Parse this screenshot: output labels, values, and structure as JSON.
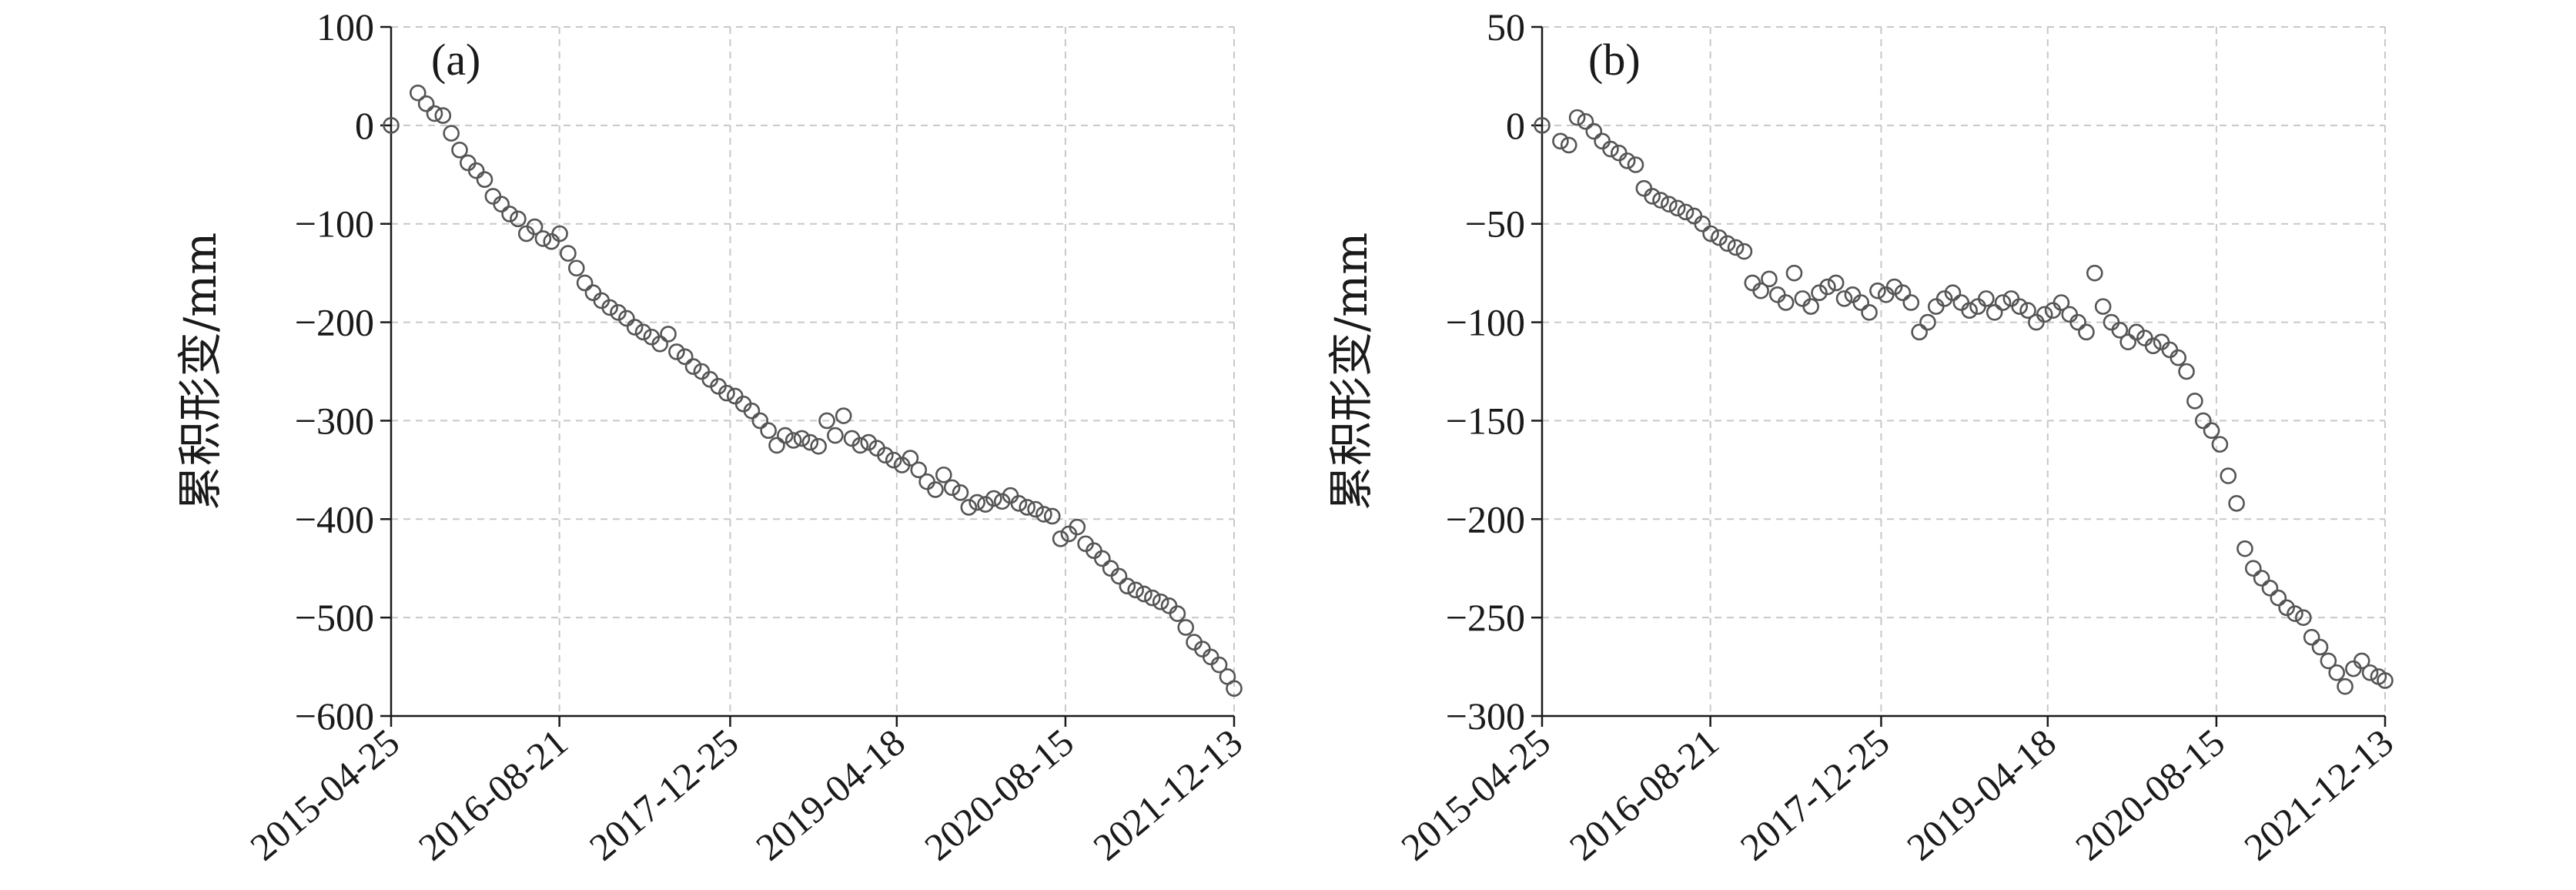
{
  "chart_data": [
    {
      "type": "scatter",
      "panel_label": "(a)",
      "ylabel": "累积形变/mm",
      "ylim": [
        -600,
        100
      ],
      "yticks": [
        100,
        0,
        -100,
        -200,
        -300,
        -400,
        -500,
        -600
      ],
      "ytick_labels": [
        "100",
        "0",
        "−100",
        "−200",
        "−300",
        "−400",
        "−500",
        "−600"
      ],
      "xlim": [
        "2015-04-25",
        "2021-12-13"
      ],
      "xticks": [
        "2015-04-25",
        "2016-08-21",
        "2017-12-25",
        "2019-04-18",
        "2020-08-15",
        "2021-12-13"
      ],
      "grid": true,
      "series": [
        {
          "marker": "open-circle",
          "color": "#555555",
          "points": [
            [
              "2015-04-25",
              0
            ],
            [
              "2015-07-11",
              33
            ],
            [
              "2015-08-04",
              22
            ],
            [
              "2015-08-28",
              12
            ],
            [
              "2015-09-21",
              10
            ],
            [
              "2015-10-15",
              -8
            ],
            [
              "2015-11-08",
              -25
            ],
            [
              "2015-12-02",
              -38
            ],
            [
              "2015-12-26",
              -46
            ],
            [
              "2016-01-19",
              -55
            ],
            [
              "2016-02-12",
              -72
            ],
            [
              "2016-03-07",
              -80
            ],
            [
              "2016-03-31",
              -90
            ],
            [
              "2016-04-24",
              -95
            ],
            [
              "2016-05-18",
              -110
            ],
            [
              "2016-06-11",
              -103
            ],
            [
              "2016-07-05",
              -115
            ],
            [
              "2016-07-29",
              -118
            ],
            [
              "2016-08-22",
              -110
            ],
            [
              "2016-09-15",
              -130
            ],
            [
              "2016-10-09",
              -145
            ],
            [
              "2016-11-02",
              -160
            ],
            [
              "2016-11-26",
              -170
            ],
            [
              "2016-12-20",
              -178
            ],
            [
              "2017-01-13",
              -185
            ],
            [
              "2017-02-06",
              -190
            ],
            [
              "2017-03-02",
              -196
            ],
            [
              "2017-03-26",
              -205
            ],
            [
              "2017-04-19",
              -210
            ],
            [
              "2017-05-13",
              -215
            ],
            [
              "2017-06-06",
              -222
            ],
            [
              "2017-06-30",
              -212
            ],
            [
              "2017-07-24",
              -230
            ],
            [
              "2017-08-17",
              -235
            ],
            [
              "2017-09-10",
              -245
            ],
            [
              "2017-10-04",
              -250
            ],
            [
              "2017-10-28",
              -258
            ],
            [
              "2017-11-21",
              -265
            ],
            [
              "2017-12-15",
              -272
            ],
            [
              "2018-01-08",
              -275
            ],
            [
              "2018-02-01",
              -283
            ],
            [
              "2018-02-25",
              -290
            ],
            [
              "2018-03-21",
              -300
            ],
            [
              "2018-04-14",
              -310
            ],
            [
              "2018-05-08",
              -325
            ],
            [
              "2018-06-01",
              -315
            ],
            [
              "2018-06-25",
              -320
            ],
            [
              "2018-07-19",
              -318
            ],
            [
              "2018-08-12",
              -322
            ],
            [
              "2018-09-05",
              -326
            ],
            [
              "2018-09-29",
              -300
            ],
            [
              "2018-10-23",
              -315
            ],
            [
              "2018-11-16",
              -295
            ],
            [
              "2018-12-10",
              -318
            ],
            [
              "2019-01-03",
              -325
            ],
            [
              "2019-01-27",
              -322
            ],
            [
              "2019-02-20",
              -328
            ],
            [
              "2019-03-16",
              -335
            ],
            [
              "2019-04-09",
              -340
            ],
            [
              "2019-05-03",
              -345
            ],
            [
              "2019-05-27",
              -338
            ],
            [
              "2019-06-20",
              -350
            ],
            [
              "2019-07-14",
              -362
            ],
            [
              "2019-08-07",
              -370
            ],
            [
              "2019-08-31",
              -355
            ],
            [
              "2019-09-24",
              -368
            ],
            [
              "2019-10-18",
              -373
            ],
            [
              "2019-11-11",
              -388
            ],
            [
              "2019-12-05",
              -383
            ],
            [
              "2019-12-29",
              -385
            ],
            [
              "2020-01-22",
              -379
            ],
            [
              "2020-02-15",
              -382
            ],
            [
              "2020-03-10",
              -376
            ],
            [
              "2020-04-03",
              -384
            ],
            [
              "2020-04-27",
              -388
            ],
            [
              "2020-05-21",
              -390
            ],
            [
              "2020-06-14",
              -395
            ],
            [
              "2020-07-08",
              -397
            ],
            [
              "2020-08-01",
              -420
            ],
            [
              "2020-08-25",
              -415
            ],
            [
              "2020-09-18",
              -408
            ],
            [
              "2020-10-12",
              -425
            ],
            [
              "2020-11-05",
              -432
            ],
            [
              "2020-11-29",
              -440
            ],
            [
              "2020-12-23",
              -450
            ],
            [
              "2021-01-16",
              -458
            ],
            [
              "2021-02-09",
              -468
            ],
            [
              "2021-03-05",
              -472
            ],
            [
              "2021-03-29",
              -476
            ],
            [
              "2021-04-22",
              -480
            ],
            [
              "2021-05-16",
              -484
            ],
            [
              "2021-06-09",
              -488
            ],
            [
              "2021-07-03",
              -496
            ],
            [
              "2021-07-27",
              -510
            ],
            [
              "2021-08-20",
              -525
            ],
            [
              "2021-09-13",
              -532
            ],
            [
              "2021-10-07",
              -540
            ],
            [
              "2021-10-31",
              -548
            ],
            [
              "2021-11-24",
              -560
            ],
            [
              "2021-12-13",
              -572
            ]
          ]
        }
      ]
    },
    {
      "type": "scatter",
      "panel_label": "(b)",
      "ylabel": "累积形变/mm",
      "ylim": [
        -300,
        50
      ],
      "yticks": [
        50,
        0,
        -50,
        -100,
        -150,
        -200,
        -250,
        -300
      ],
      "ytick_labels": [
        "50",
        "0",
        "−50",
        "−100",
        "−150",
        "−200",
        "−250",
        "−300"
      ],
      "xlim": [
        "2015-04-25",
        "2021-12-13"
      ],
      "xticks": [
        "2015-04-25",
        "2016-08-21",
        "2017-12-25",
        "2019-04-18",
        "2020-08-15",
        "2021-12-13"
      ],
      "grid": true,
      "series": [
        {
          "marker": "open-circle",
          "color": "#555555",
          "points": [
            [
              "2015-04-25",
              0
            ],
            [
              "2015-06-17",
              -8
            ],
            [
              "2015-07-11",
              -10
            ],
            [
              "2015-08-04",
              4
            ],
            [
              "2015-08-28",
              2
            ],
            [
              "2015-09-21",
              -3
            ],
            [
              "2015-10-15",
              -8
            ],
            [
              "2015-11-08",
              -12
            ],
            [
              "2015-12-02",
              -14
            ],
            [
              "2015-12-26",
              -18
            ],
            [
              "2016-01-19",
              -20
            ],
            [
              "2016-02-12",
              -32
            ],
            [
              "2016-03-07",
              -36
            ],
            [
              "2016-03-31",
              -38
            ],
            [
              "2016-04-24",
              -40
            ],
            [
              "2016-05-18",
              -42
            ],
            [
              "2016-06-11",
              -44
            ],
            [
              "2016-07-05",
              -46
            ],
            [
              "2016-07-29",
              -50
            ],
            [
              "2016-08-22",
              -55
            ],
            [
              "2016-09-15",
              -57
            ],
            [
              "2016-10-09",
              -60
            ],
            [
              "2016-11-02",
              -62
            ],
            [
              "2016-11-26",
              -64
            ],
            [
              "2016-12-20",
              -80
            ],
            [
              "2017-01-13",
              -84
            ],
            [
              "2017-02-06",
              -78
            ],
            [
              "2017-03-02",
              -86
            ],
            [
              "2017-03-26",
              -90
            ],
            [
              "2017-04-19",
              -75
            ],
            [
              "2017-05-13",
              -88
            ],
            [
              "2017-06-06",
              -92
            ],
            [
              "2017-06-30",
              -85
            ],
            [
              "2017-07-24",
              -82
            ],
            [
              "2017-08-17",
              -80
            ],
            [
              "2017-09-10",
              -88
            ],
            [
              "2017-10-04",
              -86
            ],
            [
              "2017-10-28",
              -90
            ],
            [
              "2017-11-21",
              -95
            ],
            [
              "2017-12-15",
              -84
            ],
            [
              "2018-01-08",
              -86
            ],
            [
              "2018-02-01",
              -82
            ],
            [
              "2018-02-25",
              -85
            ],
            [
              "2018-03-21",
              -90
            ],
            [
              "2018-04-14",
              -105
            ],
            [
              "2018-05-08",
              -100
            ],
            [
              "2018-06-01",
              -92
            ],
            [
              "2018-06-25",
              -88
            ],
            [
              "2018-07-19",
              -85
            ],
            [
              "2018-08-12",
              -90
            ],
            [
              "2018-09-05",
              -94
            ],
            [
              "2018-09-29",
              -92
            ],
            [
              "2018-10-23",
              -88
            ],
            [
              "2018-11-16",
              -95
            ],
            [
              "2018-12-10",
              -90
            ],
            [
              "2019-01-03",
              -88
            ],
            [
              "2019-01-27",
              -92
            ],
            [
              "2019-02-20",
              -94
            ],
            [
              "2019-03-16",
              -100
            ],
            [
              "2019-04-09",
              -96
            ],
            [
              "2019-05-03",
              -94
            ],
            [
              "2019-05-27",
              -90
            ],
            [
              "2019-06-20",
              -96
            ],
            [
              "2019-07-14",
              -100
            ],
            [
              "2019-08-07",
              -105
            ],
            [
              "2019-08-31",
              -75
            ],
            [
              "2019-09-24",
              -92
            ],
            [
              "2019-10-18",
              -100
            ],
            [
              "2019-11-11",
              -104
            ],
            [
              "2019-12-05",
              -110
            ],
            [
              "2019-12-29",
              -105
            ],
            [
              "2020-01-22",
              -108
            ],
            [
              "2020-02-15",
              -112
            ],
            [
              "2020-03-10",
              -110
            ],
            [
              "2020-04-03",
              -114
            ],
            [
              "2020-04-27",
              -118
            ],
            [
              "2020-05-21",
              -125
            ],
            [
              "2020-06-14",
              -140
            ],
            [
              "2020-07-08",
              -150
            ],
            [
              "2020-08-01",
              -155
            ],
            [
              "2020-08-25",
              -162
            ],
            [
              "2020-09-18",
              -178
            ],
            [
              "2020-10-12",
              -192
            ],
            [
              "2020-11-05",
              -215
            ],
            [
              "2020-11-29",
              -225
            ],
            [
              "2020-12-23",
              -230
            ],
            [
              "2021-01-16",
              -235
            ],
            [
              "2021-02-09",
              -240
            ],
            [
              "2021-03-05",
              -245
            ],
            [
              "2021-03-29",
              -248
            ],
            [
              "2021-04-22",
              -250
            ],
            [
              "2021-05-16",
              -260
            ],
            [
              "2021-06-09",
              -265
            ],
            [
              "2021-07-03",
              -272
            ],
            [
              "2021-07-27",
              -278
            ],
            [
              "2021-08-20",
              -285
            ],
            [
              "2021-09-13",
              -276
            ],
            [
              "2021-10-07",
              -272
            ],
            [
              "2021-10-31",
              -278
            ],
            [
              "2021-11-24",
              -280
            ],
            [
              "2021-12-13",
              -282
            ]
          ]
        }
      ]
    }
  ]
}
